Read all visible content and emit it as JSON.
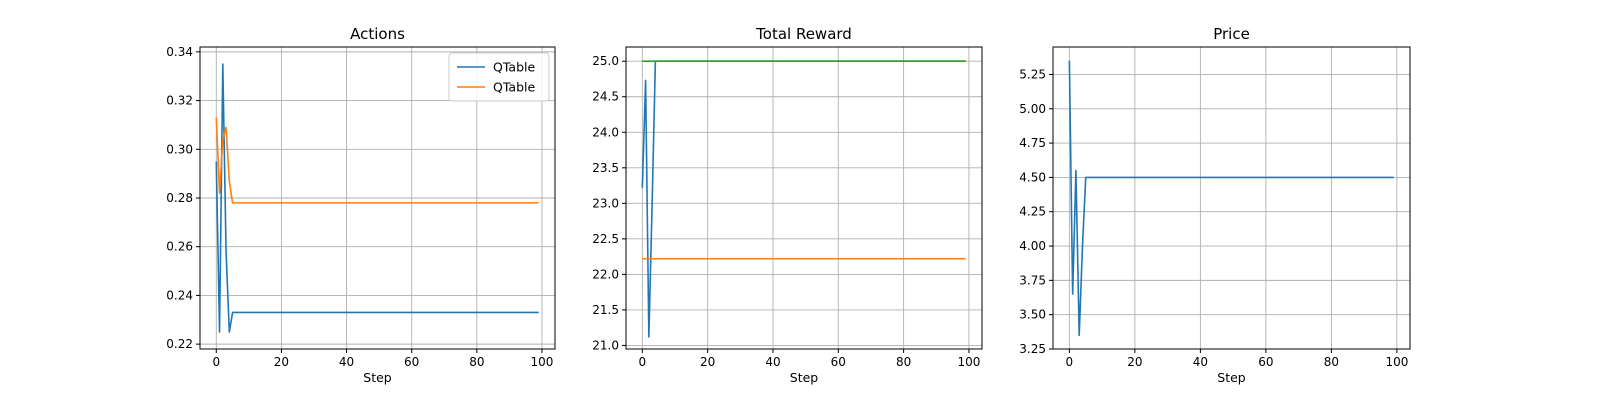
{
  "chart_data": [
    {
      "type": "line",
      "title": "Actions",
      "xlabel": "Step",
      "ylabel": "",
      "xlim": [
        -5,
        104
      ],
      "ylim": [
        0.218,
        0.342
      ],
      "xticks": [
        0,
        20,
        40,
        60,
        80,
        100
      ],
      "yticks": [
        0.22,
        0.24,
        0.26,
        0.28,
        0.3,
        0.32,
        0.34
      ],
      "ytick_decimals": 2,
      "grid": true,
      "legend": "top-right",
      "series": [
        {
          "name": "QTable",
          "color": "#1f77b4",
          "x": [
            0,
            1,
            2,
            3,
            4,
            5,
            99
          ],
          "y": [
            0.295,
            0.225,
            0.335,
            0.258,
            0.225,
            0.233,
            0.233
          ]
        },
        {
          "name": "QTable",
          "color": "#ff7f0e",
          "x": [
            0,
            1,
            2,
            3,
            4,
            5,
            99
          ],
          "y": [
            0.313,
            0.282,
            0.304,
            0.309,
            0.287,
            0.278,
            0.278
          ]
        }
      ]
    },
    {
      "type": "line",
      "title": "Total Reward",
      "xlabel": "Step",
      "ylabel": "",
      "xlim": [
        -5,
        104
      ],
      "ylim": [
        20.95,
        25.2
      ],
      "xticks": [
        0,
        20,
        40,
        60,
        80,
        100
      ],
      "yticks": [
        21.0,
        21.5,
        22.0,
        22.5,
        23.0,
        23.5,
        24.0,
        24.5,
        25.0
      ],
      "ytick_decimals": 1,
      "grid": true,
      "legend": "none",
      "series": [
        {
          "color": "#1f77b4",
          "x": [
            0,
            1,
            2,
            3,
            4,
            99
          ],
          "y": [
            23.22,
            24.73,
            21.12,
            23.0,
            25.0,
            25.0
          ]
        },
        {
          "color": "#ff7f0e",
          "x": [
            0,
            99
          ],
          "y": [
            22.22,
            22.22
          ]
        },
        {
          "color": "#2ca02c",
          "x": [
            0,
            99
          ],
          "y": [
            25.0,
            25.0
          ]
        }
      ]
    },
    {
      "type": "line",
      "title": "Price",
      "xlabel": "Step",
      "ylabel": "",
      "xlim": [
        -5,
        104
      ],
      "ylim": [
        3.25,
        5.45
      ],
      "xticks": [
        0,
        20,
        40,
        60,
        80,
        100
      ],
      "yticks": [
        3.25,
        3.5,
        3.75,
        4.0,
        4.25,
        4.5,
        4.75,
        5.0,
        5.25
      ],
      "ytick_decimals": 2,
      "grid": true,
      "legend": "none",
      "series": [
        {
          "color": "#1f77b4",
          "x": [
            0,
            1,
            2,
            3,
            4,
            5,
            99
          ],
          "y": [
            5.35,
            3.65,
            4.55,
            3.35,
            4.0,
            4.5,
            4.5
          ]
        }
      ]
    }
  ]
}
